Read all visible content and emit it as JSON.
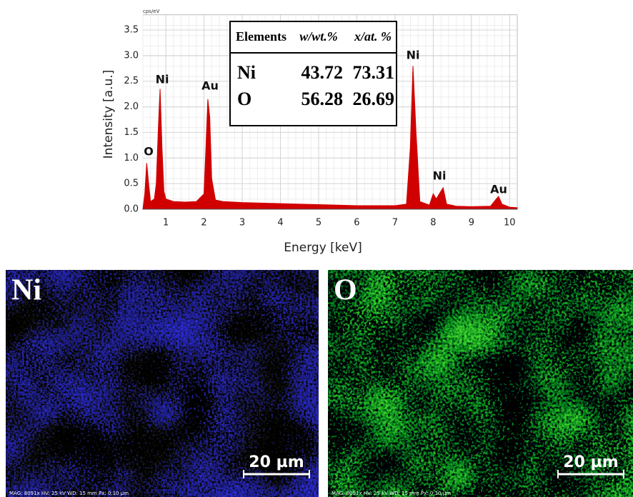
{
  "chart_data": {
    "type": "area",
    "color": "#d00000",
    "y_unit": "cps/eV",
    "xlabel": "Energy [keV]",
    "ylabel": "Intensity [a.u.]",
    "grid": true,
    "xlim": [
      0.4,
      10.2
    ],
    "ylim": [
      0,
      3.8
    ],
    "xticks": [
      1,
      2,
      3,
      4,
      5,
      6,
      7,
      8,
      9,
      10
    ],
    "yticks": [
      {
        "value": 0,
        "label": "0.0"
      },
      {
        "value": 0.5,
        "label": "0.5"
      },
      {
        "value": 1,
        "label": "1.0"
      },
      {
        "value": 1.5,
        "label": "1.5"
      },
      {
        "value": 2,
        "label": "2.0"
      },
      {
        "value": 2.5,
        "label": "2.5"
      },
      {
        "value": 3,
        "label": "3.0"
      },
      {
        "value": 3.5,
        "label": "3.5"
      }
    ],
    "x": [
      0.4,
      0.45,
      0.5,
      0.55,
      0.6,
      0.7,
      0.75,
      0.8,
      0.85,
      0.9,
      0.95,
      1.0,
      1.2,
      1.5,
      1.8,
      2.0,
      2.05,
      2.1,
      2.15,
      2.2,
      2.3,
      2.5,
      3.0,
      3.5,
      4.0,
      4.5,
      5.0,
      5.5,
      6.0,
      6.5,
      7.0,
      7.3,
      7.4,
      7.47,
      7.55,
      7.65,
      7.9,
      8.0,
      8.08,
      8.2,
      8.26,
      8.35,
      8.6,
      9.0,
      9.5,
      9.65,
      9.71,
      9.8,
      10.0,
      10.2
    ],
    "values": [
      0.0,
      0.3,
      0.9,
      0.5,
      0.15,
      0.2,
      0.5,
      1.5,
      2.35,
      1.2,
      0.35,
      0.2,
      0.15,
      0.14,
      0.15,
      0.3,
      1.2,
      2.15,
      1.8,
      0.6,
      0.18,
      0.15,
      0.13,
      0.12,
      0.11,
      0.1,
      0.09,
      0.08,
      0.07,
      0.07,
      0.07,
      0.1,
      1.2,
      2.8,
      1.5,
      0.15,
      0.08,
      0.3,
      0.2,
      0.35,
      0.42,
      0.1,
      0.06,
      0.05,
      0.06,
      0.2,
      0.25,
      0.1,
      0.04,
      0.03
    ],
    "annotations": [
      "O",
      "Ni",
      "Au",
      "Ni",
      "Ni",
      "Au"
    ],
    "table": {
      "columns": [
        "Elements",
        "w/wt.%",
        "x/at. %"
      ],
      "rows": [
        [
          "Ni",
          43.72,
          73.31
        ],
        [
          "O",
          56.28,
          26.69
        ]
      ]
    }
  },
  "maps": [
    {
      "label": "Ni",
      "scale_bar": "20 µm",
      "info": "MAG: 8091x   HV: 25 kV   WD: 15 mm   Px: 0.10 µm"
    },
    {
      "label": "O",
      "scale_bar": "20 µm",
      "info": "MAG: 8091x   HV: 25 kV   WD: 15 mm   Px: 0.10 µm"
    }
  ]
}
